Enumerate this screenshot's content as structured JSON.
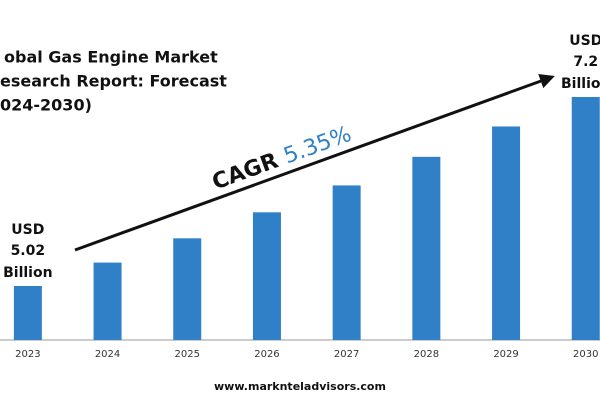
{
  "chart_data": {
    "type": "bar",
    "title_lines": [
      "obal Gas Engine Market",
      "esearch Report: Forecast",
      "024-2030)"
    ],
    "categories": [
      "2023",
      "2024",
      "2025",
      "2026",
      "2027",
      "2028",
      "2029",
      "2030"
    ],
    "values": [
      5.02,
      5.29,
      5.57,
      5.87,
      6.18,
      6.51,
      6.86,
      7.2
    ],
    "color": "#2f80c6",
    "value_prefix": "USD",
    "value_suffix": "Billion",
    "cagr_label": "CAGR",
    "cagr_value": "5.35%",
    "footer": "www.marknteladvisors.com"
  }
}
